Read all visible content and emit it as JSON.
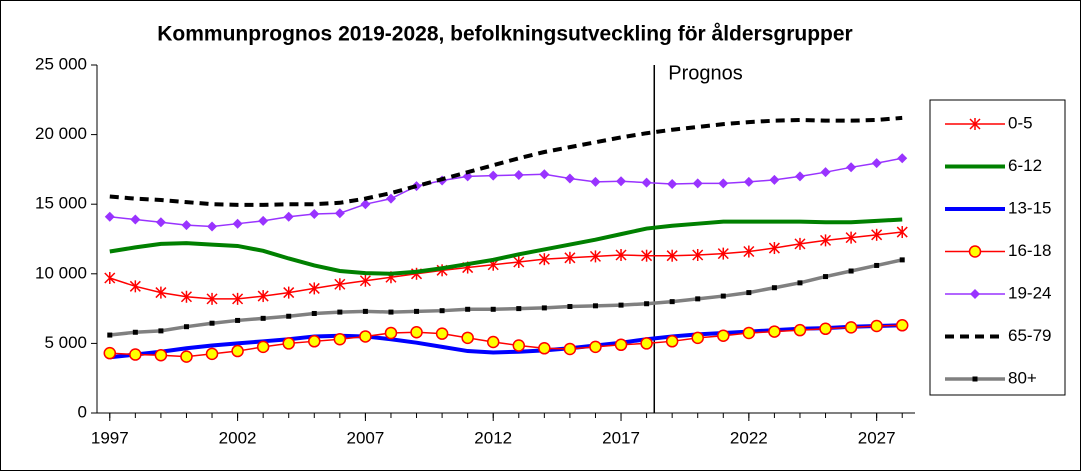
{
  "chart_data": {
    "type": "line",
    "title": "Kommunprognos 2019-2028, befolkningsutveckling för åldersgrupper",
    "annotation": {
      "text": "Prognos",
      "x": 2018.3
    },
    "x": [
      1997,
      1998,
      1999,
      2000,
      2001,
      2002,
      2003,
      2004,
      2005,
      2006,
      2007,
      2008,
      2009,
      2010,
      2011,
      2012,
      2013,
      2014,
      2015,
      2016,
      2017,
      2018,
      2019,
      2020,
      2021,
      2022,
      2023,
      2024,
      2025,
      2026,
      2027,
      2028
    ],
    "xlim": [
      1996.5,
      2028.5
    ],
    "xticks": [
      1997,
      2002,
      2007,
      2012,
      2017,
      2022,
      2027
    ],
    "ylim": [
      0,
      25000
    ],
    "yticks": [
      0,
      {
        "value": 5000,
        "label": "5 000"
      },
      {
        "value": 10000,
        "label": "10 000"
      },
      {
        "value": 15000,
        "label": "15 000"
      },
      {
        "value": 20000,
        "label": "20 000"
      },
      {
        "value": 25000,
        "label": "25 000"
      }
    ],
    "legend": "right",
    "series": [
      {
        "name": "0-5",
        "color": "#ff0000",
        "marker": "star",
        "values": [
          9700,
          9100,
          8650,
          8350,
          8200,
          8200,
          8400,
          8650,
          8950,
          9250,
          9500,
          9750,
          10000,
          10250,
          10450,
          10650,
          10850,
          11050,
          11150,
          11250,
          11350,
          11300,
          11300,
          11350,
          11450,
          11600,
          11850,
          12150,
          12400,
          12600,
          12800,
          13000
        ]
      },
      {
        "name": "6-12",
        "color": "#008000",
        "marker": "none",
        "values": [
          11600,
          11900,
          12150,
          12200,
          12100,
          12000,
          11650,
          11100,
          10600,
          10200,
          10050,
          10000,
          10150,
          10400,
          10700,
          11000,
          11400,
          11750,
          12100,
          12450,
          12850,
          13250,
          13450,
          13600,
          13750,
          13750,
          13750,
          13750,
          13700,
          13700,
          13800,
          13900
        ]
      },
      {
        "name": "13-15",
        "color": "#0000ff",
        "marker": "none",
        "values": [
          4000,
          4200,
          4400,
          4650,
          4850,
          5000,
          5150,
          5300,
          5500,
          5550,
          5500,
          5300,
          5050,
          4750,
          4450,
          4350,
          4400,
          4500,
          4650,
          4850,
          5050,
          5300,
          5500,
          5650,
          5750,
          5850,
          5950,
          6050,
          6100,
          6200,
          6250,
          6300
        ]
      },
      {
        "name": "16-18",
        "color": "#ff0000",
        "marker": "circle",
        "values": [
          4300,
          4200,
          4150,
          4050,
          4250,
          4450,
          4750,
          5000,
          5150,
          5300,
          5500,
          5750,
          5800,
          5700,
          5400,
          5100,
          4850,
          4650,
          4600,
          4750,
          4900,
          5000,
          5150,
          5400,
          5550,
          5750,
          5850,
          5950,
          6050,
          6150,
          6250,
          6300
        ]
      },
      {
        "name": "19-24",
        "color": "#9933ff",
        "marker": "diamond",
        "values": [
          14100,
          13900,
          13700,
          13500,
          13400,
          13600,
          13800,
          14100,
          14300,
          14350,
          15000,
          15400,
          16300,
          16700,
          17000,
          17050,
          17100,
          17150,
          16850,
          16600,
          16650,
          16550,
          16450,
          16500,
          16500,
          16600,
          16750,
          17000,
          17300,
          17650,
          17950,
          18300
        ]
      },
      {
        "name": "65-79",
        "color": "#000000",
        "marker": "none",
        "dashed": true,
        "values": [
          15550,
          15400,
          15300,
          15150,
          15000,
          14950,
          14950,
          15000,
          15000,
          15100,
          15400,
          15800,
          16300,
          16800,
          17300,
          17800,
          18300,
          18750,
          19100,
          19450,
          19800,
          20100,
          20350,
          20550,
          20750,
          20900,
          21000,
          21050,
          21000,
          21000,
          21050,
          21200
        ]
      },
      {
        "name": "80+",
        "color": "#808080",
        "marker": "square",
        "values": [
          5600,
          5800,
          5900,
          6200,
          6450,
          6650,
          6800,
          6950,
          7150,
          7250,
          7300,
          7250,
          7300,
          7350,
          7450,
          7450,
          7500,
          7550,
          7650,
          7700,
          7750,
          7850,
          8000,
          8200,
          8400,
          8650,
          9000,
          9350,
          9800,
          10200,
          10600,
          11000
        ]
      }
    ]
  }
}
